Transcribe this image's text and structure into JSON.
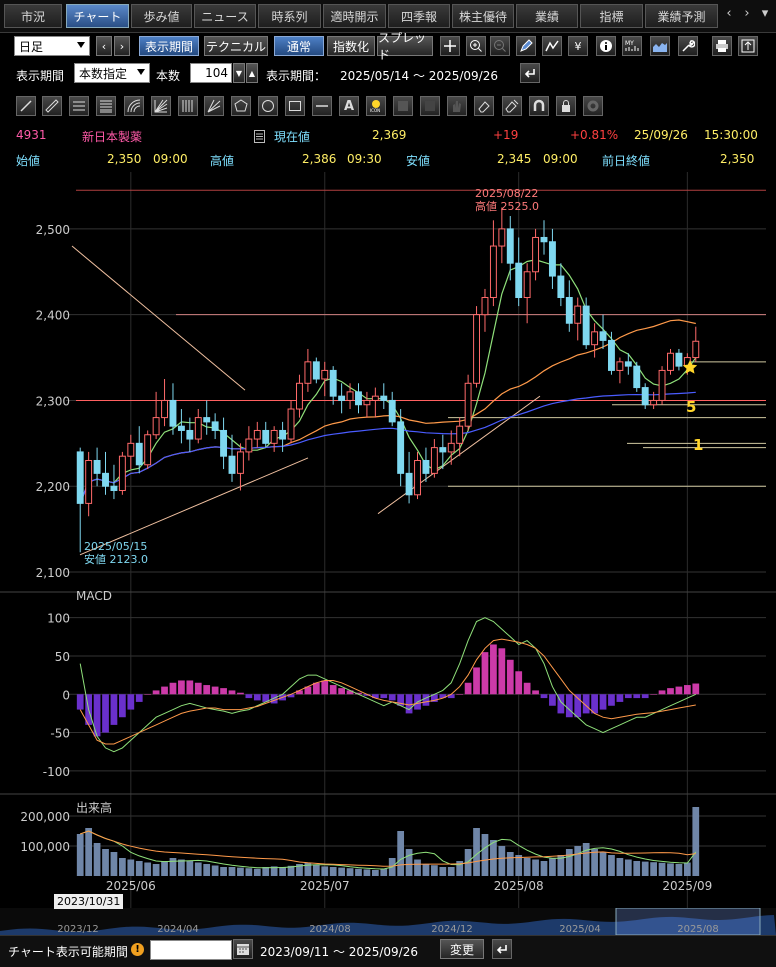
{
  "tabs": [
    {
      "label": "市況",
      "active": false
    },
    {
      "label": "チャート",
      "active": true
    },
    {
      "label": "歩み値",
      "active": false
    },
    {
      "label": "ニュース",
      "active": false
    },
    {
      "label": "時系列",
      "active": false
    },
    {
      "label": "適時開示",
      "active": false
    },
    {
      "label": "四季報",
      "active": false
    },
    {
      "label": "株主優待",
      "active": false
    },
    {
      "label": "業績",
      "active": false
    },
    {
      "label": "指標",
      "active": false
    },
    {
      "label": "業績予測",
      "active": false
    }
  ],
  "toolbar": {
    "period_select": "日足",
    "prev": "‹",
    "next": "›",
    "btn_period": "表示期間",
    "btn_technical": "テクニカル",
    "btn_normal": "通常",
    "btn_index": "指数化",
    "btn_spread": "スプレッド"
  },
  "toolbar_icons": [
    "crosshair-icon",
    "zoom-in-icon",
    "zoom-out-icon",
    "pen-icon",
    "trend-icon",
    "yen-icon",
    "info-icon",
    "my-chart-icon",
    "area-chart-icon",
    "wrench-icon",
    "print-icon",
    "export-icon"
  ],
  "period": {
    "label": "表示期間",
    "mode": "本数指定",
    "count_label": "本数",
    "count": "104",
    "range_label": "表示期間：",
    "range": "2025/05/14 ～ 2025/09/26"
  },
  "drawing_icons": [
    "line-tool-icon",
    "ruler-tool-icon",
    "horizontal-lines-icon",
    "fibonacci-icon",
    "arc-tool-icon",
    "gann-fan-icon",
    "vertical-lines-icon",
    "fan-tool-icon",
    "pentagon-icon",
    "circle-icon",
    "rectangle-icon",
    "hline-icon",
    "text-tool-icon",
    "icon-stamp-icon",
    "disabled-tool-1-icon",
    "disabled-tool-2-icon",
    "hand-tool-icon",
    "eraser-icon",
    "erase-all-icon",
    "magnet-icon",
    "lock-icon",
    "settings-icon"
  ],
  "quote": {
    "code": "4931",
    "name": "新日本製薬",
    "current_label": "現在値",
    "current": "2,369",
    "change": "+19",
    "change_pct": "+0.81%",
    "datetime": "25/09/26",
    "time": "15:30:00",
    "open_label": "始値",
    "open": "2,350",
    "open_time": "09:00",
    "high_label": "高値",
    "high": "2,386",
    "high_time": "09:30",
    "low_label": "安値",
    "low": "2,345",
    "low_time": "09:00",
    "prev_label": "前日終値",
    "prev_close": "2,350"
  },
  "colors": {
    "up_candle": "#ff6a6a",
    "down_candle": "#7fd8f0",
    "ma_short": "#8fe07a",
    "ma_mid": "#ff9a4a",
    "ma_long": "#4a5cff",
    "macd_hist": "#cc3aa8",
    "macd_hist_neg": "#6a30cc",
    "gold_text": "#ffd52a",
    "quote_code": "#ff5aa8",
    "quote_label": "#7fe0ff",
    "quote_value": "#ffee66"
  },
  "chart_data": [
    {
      "type": "candlestick",
      "title": "4931 新日本製薬 日足",
      "x_labels": [
        "2025/06",
        "2025/07",
        "2025/08",
        "2025/09"
      ],
      "y_ticks": [
        2100,
        2200,
        2300,
        2400,
        2500
      ],
      "ylim": [
        2100,
        2550
      ],
      "annotations": [
        {
          "text": "2025/08/22",
          "text2": "高値 2525.0"
        },
        {
          "text": "2025/05/15",
          "text2": "安値 2123.0"
        },
        {
          "text": "5"
        },
        {
          "text": "1"
        }
      ],
      "ohlc": [
        [
          2240,
          2245,
          2123,
          2180
        ],
        [
          2180,
          2240,
          2165,
          2230
        ],
        [
          2230,
          2245,
          2200,
          2215
        ],
        [
          2215,
          2240,
          2190,
          2200
        ],
        [
          2200,
          2225,
          2185,
          2195
        ],
        [
          2195,
          2240,
          2190,
          2235
        ],
        [
          2235,
          2260,
          2220,
          2250
        ],
        [
          2250,
          2270,
          2215,
          2225
        ],
        [
          2225,
          2265,
          2220,
          2260
        ],
        [
          2260,
          2310,
          2255,
          2280
        ],
        [
          2280,
          2325,
          2270,
          2300
        ],
        [
          2300,
          2320,
          2260,
          2270
        ],
        [
          2270,
          2290,
          2250,
          2265
        ],
        [
          2265,
          2280,
          2240,
          2255
        ],
        [
          2255,
          2290,
          2250,
          2280
        ],
        [
          2280,
          2300,
          2260,
          2275
        ],
        [
          2275,
          2285,
          2255,
          2265
        ],
        [
          2265,
          2280,
          2220,
          2235
        ],
        [
          2235,
          2260,
          2205,
          2215
        ],
        [
          2215,
          2250,
          2195,
          2240
        ],
        [
          2240,
          2270,
          2230,
          2255
        ],
        [
          2255,
          2275,
          2245,
          2265
        ],
        [
          2265,
          2275,
          2245,
          2250
        ],
        [
          2250,
          2270,
          2240,
          2265
        ],
        [
          2265,
          2275,
          2240,
          2255
        ],
        [
          2255,
          2300,
          2250,
          2290
        ],
        [
          2290,
          2330,
          2280,
          2320
        ],
        [
          2320,
          2360,
          2310,
          2345
        ],
        [
          2345,
          2350,
          2320,
          2325
        ],
        [
          2325,
          2345,
          2305,
          2335
        ],
        [
          2335,
          2340,
          2295,
          2305
        ],
        [
          2305,
          2320,
          2285,
          2300
        ],
        [
          2300,
          2320,
          2290,
          2310
        ],
        [
          2310,
          2320,
          2285,
          2295
        ],
        [
          2295,
          2310,
          2280,
          2300
        ],
        [
          2300,
          2315,
          2280,
          2305
        ],
        [
          2305,
          2320,
          2290,
          2300
        ],
        [
          2300,
          2310,
          2270,
          2275
        ],
        [
          2275,
          2290,
          2200,
          2215
        ],
        [
          2215,
          2240,
          2180,
          2190
        ],
        [
          2190,
          2240,
          2185,
          2230
        ],
        [
          2230,
          2245,
          2205,
          2215
        ],
        [
          2215,
          2255,
          2210,
          2245
        ],
        [
          2245,
          2260,
          2220,
          2240
        ],
        [
          2240,
          2265,
          2225,
          2250
        ],
        [
          2250,
          2280,
          2235,
          2270
        ],
        [
          2270,
          2330,
          2265,
          2320
        ],
        [
          2320,
          2410,
          2315,
          2400
        ],
        [
          2400,
          2430,
          2380,
          2420
        ],
        [
          2420,
          2510,
          2410,
          2480
        ],
        [
          2480,
          2525,
          2460,
          2500
        ],
        [
          2500,
          2515,
          2440,
          2460
        ],
        [
          2460,
          2490,
          2410,
          2420
        ],
        [
          2420,
          2460,
          2390,
          2450
        ],
        [
          2450,
          2500,
          2440,
          2490
        ],
        [
          2490,
          2510,
          2470,
          2485
        ],
        [
          2485,
          2500,
          2430,
          2445
        ],
        [
          2445,
          2460,
          2410,
          2420
        ],
        [
          2420,
          2440,
          2380,
          2390
        ],
        [
          2390,
          2420,
          2370,
          2410
        ],
        [
          2410,
          2420,
          2360,
          2365
        ],
        [
          2365,
          2390,
          2350,
          2380
        ],
        [
          2380,
          2400,
          2360,
          2370
        ],
        [
          2370,
          2380,
          2330,
          2335
        ],
        [
          2335,
          2350,
          2320,
          2345
        ],
        [
          2345,
          2355,
          2330,
          2340
        ],
        [
          2340,
          2345,
          2310,
          2315
        ],
        [
          2315,
          2320,
          2290,
          2295
        ],
        [
          2295,
          2310,
          2290,
          2300
        ],
        [
          2300,
          2340,
          2295,
          2335
        ],
        [
          2335,
          2360,
          2330,
          2355
        ],
        [
          2355,
          2360,
          2335,
          2340
        ],
        [
          2340,
          2355,
          2330,
          2350
        ],
        [
          2350,
          2386,
          2345,
          2369
        ]
      ],
      "horizontal_levels": [
        2545,
        2400,
        2345,
        2300,
        2295,
        2280,
        2250,
        2245,
        2200
      ]
    },
    {
      "type": "bar",
      "title": "MACD",
      "y_ticks": [
        100,
        50,
        0,
        -50,
        -100
      ],
      "ylim": [
        -125,
        110
      ],
      "histogram": [
        -20,
        -40,
        -55,
        -50,
        -40,
        -30,
        -20,
        -10,
        0,
        5,
        10,
        15,
        18,
        18,
        15,
        12,
        10,
        8,
        5,
        2,
        -5,
        -8,
        -10,
        -12,
        -8,
        -4,
        5,
        10,
        15,
        18,
        12,
        8,
        5,
        2,
        -2,
        -5,
        -5,
        -8,
        -15,
        -25,
        -20,
        -15,
        -10,
        -5,
        -5,
        0,
        15,
        35,
        55,
        65,
        60,
        45,
        30,
        15,
        5,
        -5,
        -15,
        -25,
        -30,
        -30,
        -25,
        -25,
        -20,
        -15,
        -10,
        -5,
        -5,
        -5,
        0,
        5,
        8,
        10,
        12,
        14
      ],
      "macd_line": [
        40,
        -20,
        -55,
        -70,
        -75,
        -70,
        -60,
        -50,
        -40,
        -30,
        -25,
        -20,
        -15,
        -12,
        -15,
        -18,
        -20,
        -22,
        -25,
        -22,
        -20,
        -15,
        -10,
        -5,
        0,
        10,
        20,
        25,
        25,
        20,
        15,
        10,
        5,
        0,
        -5,
        -10,
        -15,
        -10,
        -15,
        -20,
        -10,
        -5,
        0,
        5,
        15,
        40,
        70,
        95,
        100,
        95,
        85,
        75,
        65,
        70,
        60,
        40,
        10,
        -10,
        -20,
        -30,
        -40,
        -45,
        -50,
        -45,
        -40,
        -35,
        -30,
        -30,
        -25,
        -20,
        -15,
        -10,
        -5,
        0
      ],
      "signal_line": [
        -20,
        -40,
        -60,
        -65,
        -65,
        -60,
        -55,
        -50,
        -45,
        -40,
        -35,
        -30,
        -25,
        -22,
        -20,
        -18,
        -18,
        -20,
        -20,
        -20,
        -18,
        -16,
        -12,
        -8,
        -4,
        0,
        5,
        10,
        15,
        18,
        18,
        15,
        10,
        5,
        0,
        -5,
        -8,
        -10,
        -12,
        -14,
        -12,
        -10,
        -8,
        -5,
        0,
        10,
        25,
        45,
        60,
        70,
        72,
        70,
        68,
        65,
        60,
        50,
        35,
        20,
        5,
        -5,
        -15,
        -25,
        -30,
        -32,
        -30,
        -28,
        -26,
        -25,
        -24,
        -22,
        -20,
        -18,
        -16,
        -14
      ]
    },
    {
      "type": "bar",
      "title": "出来高",
      "y_ticks": [
        200000,
        100000
      ],
      "ylim": [
        0,
        260000
      ],
      "volume": [
        140000,
        160000,
        110000,
        90000,
        80000,
        60000,
        55000,
        50000,
        45000,
        40000,
        50000,
        60000,
        55000,
        50000,
        45000,
        40000,
        35000,
        30000,
        30000,
        28000,
        26000,
        24000,
        30000,
        32000,
        30000,
        34000,
        40000,
        45000,
        38000,
        32000,
        30000,
        28000,
        26000,
        24000,
        22000,
        20000,
        24000,
        60000,
        150000,
        90000,
        55000,
        40000,
        36000,
        30000,
        30000,
        50000,
        90000,
        160000,
        140000,
        120000,
        100000,
        80000,
        70000,
        60000,
        55000,
        50000,
        60000,
        70000,
        90000,
        100000,
        110000,
        90000,
        80000,
        70000,
        60000,
        55000,
        50000,
        48000,
        46000,
        44000,
        42000,
        40000,
        45000,
        230000
      ]
    }
  ],
  "navigator": {
    "range_badge": "2023/10/31",
    "labels": [
      "2023/12",
      "2024/04",
      "2024/08",
      "2024/12",
      "2025/04",
      "2025/08"
    ]
  },
  "footer": {
    "label": "チャート表示可能期間",
    "date_input": "",
    "range": "2023/09/11 ～ 2025/09/26",
    "change_button": "変更"
  }
}
